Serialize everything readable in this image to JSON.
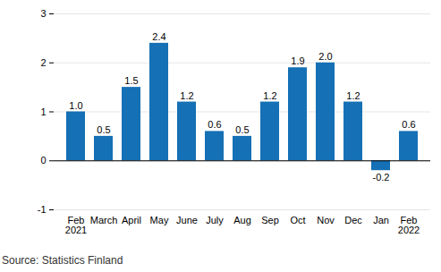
{
  "chart_data": {
    "type": "bar",
    "caption": "Source: Statistics Finland",
    "categories": [
      "Feb 2021",
      "March",
      "April",
      "May",
      "June",
      "July",
      "Aug",
      "Sep",
      "Oct",
      "Nov",
      "Dec",
      "Jan",
      "Feb 2022"
    ],
    "values": [
      1.0,
      0.5,
      1.5,
      2.4,
      1.2,
      0.6,
      0.5,
      1.2,
      1.9,
      2.0,
      1.2,
      -0.2,
      0.6
    ],
    "value_labels": [
      "1.0",
      "0.5",
      "1.5",
      "2.4",
      "1.2",
      "0.6",
      "0.5",
      "1.2",
      "1.9",
      "2.0",
      "1.2",
      "-0.2",
      "0.6"
    ],
    "color": "#1570b5",
    "ylim": [
      -1,
      3
    ],
    "yticks": [
      -1,
      0,
      1,
      2,
      3
    ],
    "grid": true,
    "data_labels": true
  }
}
